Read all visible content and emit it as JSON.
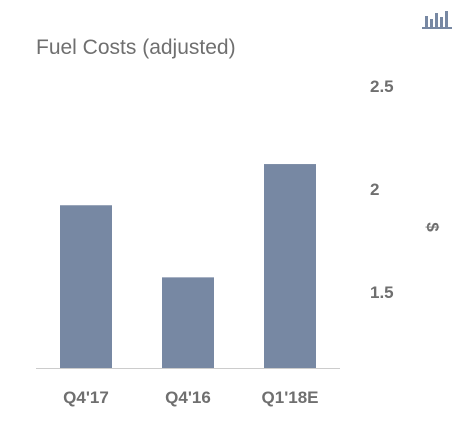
{
  "chart_data": {
    "type": "bar",
    "title": "Fuel Costs (adjusted)",
    "categories": [
      "Q4'17",
      "Q4'16",
      "Q1'18E"
    ],
    "values": [
      1.92,
      1.57,
      2.12
    ],
    "xlabel": "",
    "ylabel": "$",
    "ylim": [
      1.13,
      2.55
    ],
    "yticks": [
      "1.5",
      "2",
      "2.5"
    ],
    "ytick_values": [
      1.5,
      2.0,
      2.5
    ],
    "y_axis_side": "right",
    "grid": false,
    "legend": "none",
    "bar_color": "#7788a3",
    "axis_color": "#cccccc",
    "text_color": "#6f6f6f"
  },
  "toolbar": {
    "chart_type_icon": "bar-chart-icon"
  }
}
